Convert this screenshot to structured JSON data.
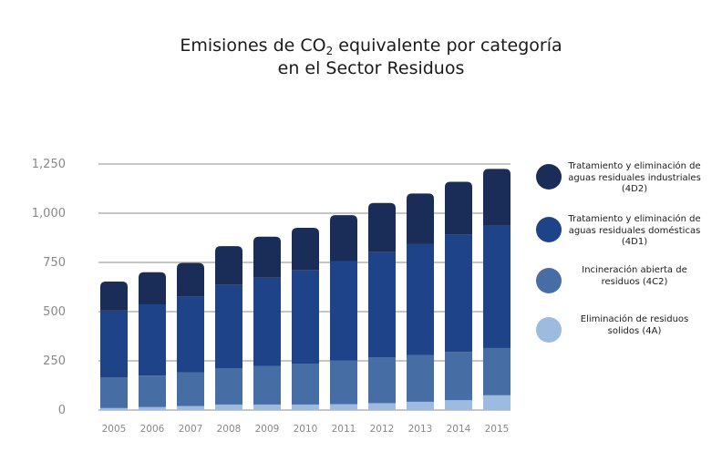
{
  "title": {
    "line1_pre": "Emisiones de CO",
    "line1_sub": "2",
    "line1_post": " equivalente por categoría",
    "line2": "en el Sector Residuos"
  },
  "colors": {
    "4A": "#9dbadf",
    "4C2": "#476da5",
    "4D1": "#1f4389",
    "4D2": "#1a2c58",
    "grid": "#8c8c8c",
    "tick_text": "#888888"
  },
  "legend": [
    {
      "key": "4D2",
      "label": "Tratamiento y eliminación de aguas residuales industriales (4D2)"
    },
    {
      "key": "4D1",
      "label": "Tratamiento y eliminación de aguas residuales domésticas (4D1)"
    },
    {
      "key": "4C2",
      "label": "Incineración abierta de residuos (4C2)"
    },
    {
      "key": "4A",
      "label": "Eliminación de residuos solidos (4A)"
    }
  ],
  "chart_data": {
    "type": "bar",
    "stacked": true,
    "categories": [
      "2005",
      "2006",
      "2007",
      "2008",
      "2009",
      "2010",
      "2011",
      "2012",
      "2013",
      "2014",
      "2015"
    ],
    "series": [
      {
        "name": "Eliminación de residuos solidos (4A)",
        "key": "4A",
        "values": [
          10,
          15,
          20,
          28,
          28,
          28,
          30,
          35,
          42,
          50,
          75
        ]
      },
      {
        "name": "Incineración abierta de residuos (4C2)",
        "key": "4C2",
        "values": [
          155,
          160,
          172,
          185,
          195,
          208,
          222,
          232,
          238,
          245,
          240
        ]
      },
      {
        "name": "Tratamiento y eliminación de aguas residuales domésticas (4D1)",
        "key": "4D1",
        "values": [
          340,
          362,
          385,
          425,
          450,
          475,
          505,
          535,
          565,
          595,
          625
        ]
      },
      {
        "name": "Tratamiento y eliminación de aguas residuales industriales (4D2)",
        "key": "4D2",
        "values": [
          148,
          163,
          170,
          195,
          208,
          215,
          233,
          250,
          255,
          270,
          285
        ]
      }
    ],
    "yticks": [
      0,
      250,
      500,
      750,
      1000,
      1250
    ],
    "ytick_labels": [
      "0",
      "250",
      "500",
      "750",
      "1,000",
      "1,250"
    ],
    "ylim": [
      0,
      1250
    ],
    "grid": true,
    "legend_position": "right"
  }
}
